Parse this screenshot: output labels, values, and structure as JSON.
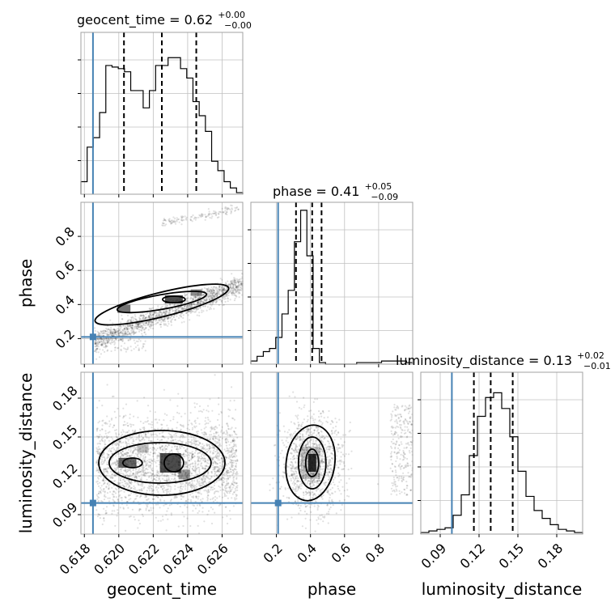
{
  "chart_data": {
    "type": "corner",
    "parameters": [
      "geocent_time",
      "phase",
      "luminosity_distance"
    ],
    "truth": {
      "geocent_time": 0.6185,
      "phase": 0.21,
      "luminosity_distance": 0.099
    },
    "colors": {
      "truth": "#4682b4",
      "histogram": "#000000",
      "grid": "#c0c0c0",
      "quantiles": "#000000"
    },
    "grid": true,
    "titles": [
      {
        "param": "geocent_time",
        "label": "geocent_time = 0.62",
        "upper": "+0.00",
        "lower": "−0.00"
      },
      {
        "param": "phase",
        "label": "phase = 0.41",
        "upper": "+0.05",
        "lower": "−0.09"
      },
      {
        "param": "luminosity_distance",
        "label": "luminosity_distance = 0.13",
        "upper": "+0.02",
        "lower": "−0.01"
      }
    ],
    "axes": {
      "geocent_time": {
        "range": [
          0.6178,
          0.6272
        ],
        "ticks": [
          0.618,
          0.62,
          0.622,
          0.624,
          0.626
        ],
        "tick_labels": [
          "0.618",
          "0.620",
          "0.622",
          "0.624",
          "0.626"
        ],
        "label": "geocent_time"
      },
      "phase": {
        "range": [
          0.05,
          1.0
        ],
        "ticks": [
          0.2,
          0.4,
          0.6,
          0.8
        ],
        "tick_labels": [
          "0.2",
          "0.4",
          "0.6",
          "0.8"
        ],
        "label": "phase"
      },
      "luminosity_distance": {
        "range": [
          0.075,
          0.2
        ],
        "ticks": [
          0.09,
          0.12,
          0.15,
          0.18
        ],
        "tick_labels": [
          "0.09",
          "0.12",
          "0.15",
          "0.18"
        ],
        "label": "luminosity_distance"
      }
    },
    "histograms": [
      {
        "param": "geocent_time",
        "quantiles": [
          0.6203,
          0.6225,
          0.6245
        ],
        "counts": [
          0.08,
          0.3,
          0.36,
          0.52,
          0.82,
          0.81,
          0.8,
          0.78,
          0.66,
          0.66,
          0.55,
          0.66,
          0.82,
          0.82,
          0.87,
          0.87,
          0.8,
          0.74,
          0.59,
          0.5,
          0.4,
          0.21,
          0.15,
          0.08,
          0.04,
          0.01
        ]
      },
      {
        "param": "phase",
        "quantiles": [
          0.315,
          0.41,
          0.465
        ],
        "counts": [
          0.02,
          0.05,
          0.08,
          0.1,
          0.17,
          0.32,
          0.47,
          0.78,
          0.98,
          0.69,
          0.1,
          0.01,
          0.0,
          0.0,
          0.0,
          0.0,
          0.0,
          0.01,
          0.01,
          0.01,
          0.01,
          0.02,
          0.02,
          0.02,
          0.02,
          0.01
        ]
      },
      {
        "param": "luminosity_distance",
        "quantiles": [
          0.116,
          0.129,
          0.146
        ],
        "counts": [
          0.01,
          0.02,
          0.03,
          0.04,
          0.12,
          0.25,
          0.5,
          0.75,
          0.87,
          0.9,
          0.8,
          0.62,
          0.4,
          0.24,
          0.15,
          0.1,
          0.06,
          0.03,
          0.02,
          0.01
        ]
      }
    ],
    "joint_2d": [
      {
        "x": "geocent_time",
        "y": "phase",
        "pdf_peaks": [
          [
            0.6203,
            0.375
          ],
          [
            0.6232,
            0.43
          ],
          [
            0.6245,
            0.47
          ]
        ]
      },
      {
        "x": "geocent_time",
        "y": "luminosity_distance",
        "pdf_peaks": [
          [
            0.6208,
            0.129
          ],
          [
            0.6232,
            0.128
          ]
        ]
      },
      {
        "x": "phase",
        "y": "luminosity_distance",
        "pdf_peaks": [
          [
            0.41,
            0.13
          ]
        ]
      }
    ]
  }
}
